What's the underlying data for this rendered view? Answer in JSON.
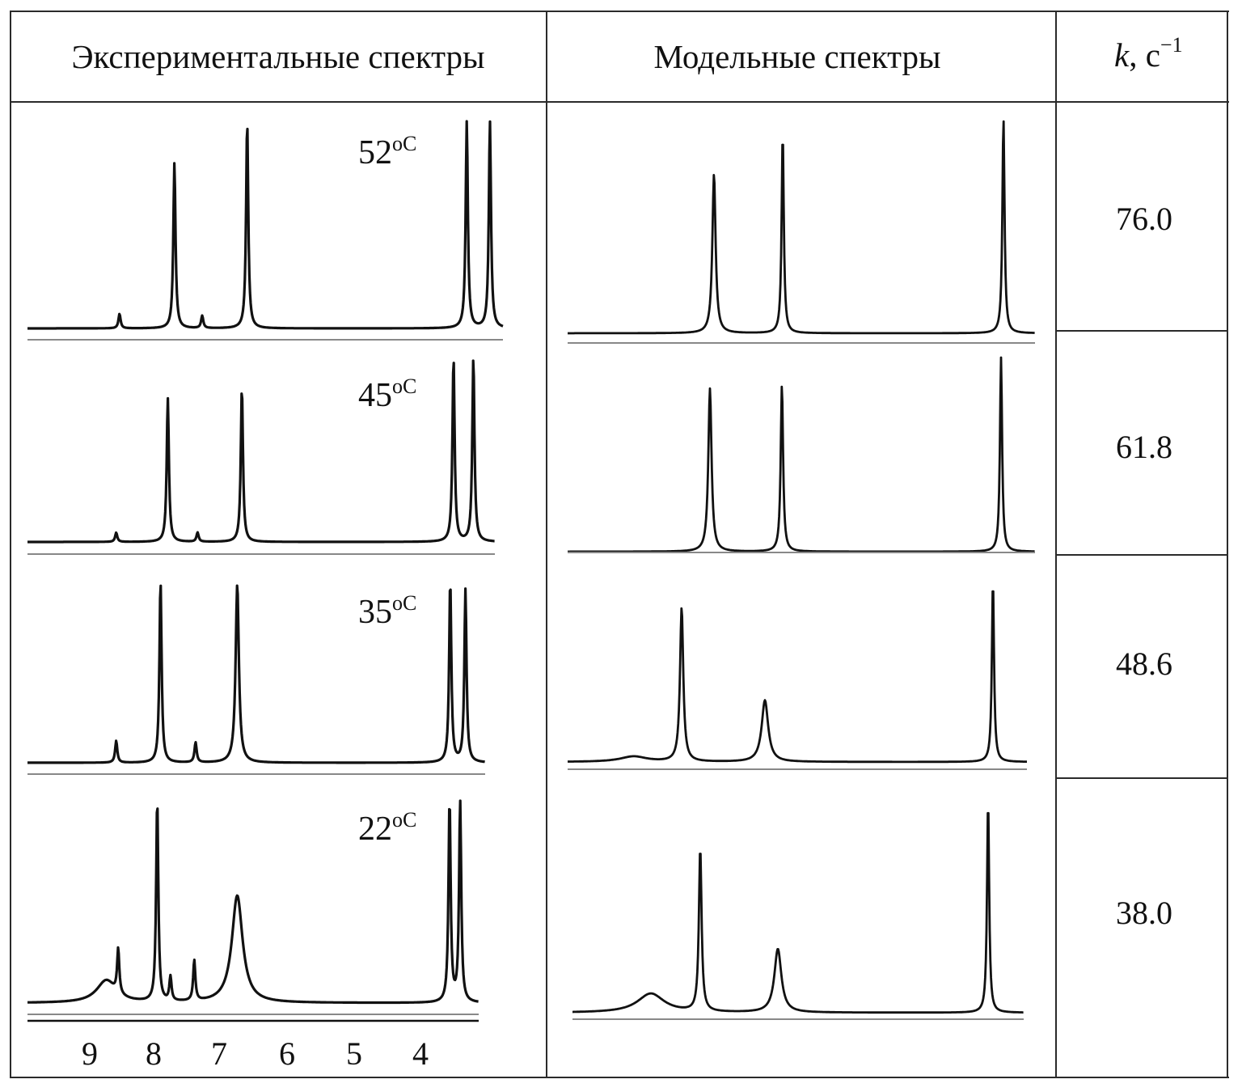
{
  "headers": {
    "experimental": "Экспериментальные спектры",
    "model": "Модельные спектры",
    "k_symbol": "k",
    "k_unit": ", с",
    "k_exp": "−1"
  },
  "rows": [
    {
      "temperature": "52",
      "temp_unit": "oC",
      "k_value": "76.0",
      "exp_peaks": [
        {
          "ppm": 8.55,
          "h": 0.07,
          "w": 0.008
        },
        {
          "ppm": 7.72,
          "h": 0.8,
          "w": 0.012
        },
        {
          "ppm": 7.3,
          "h": 0.06,
          "w": 0.008
        },
        {
          "ppm": 6.62,
          "h": 1.0,
          "w": 0.01
        },
        {
          "ppm": 3.3,
          "h": 1.0,
          "w": 0.007
        },
        {
          "ppm": 2.95,
          "h": 1.0,
          "w": 0.007
        }
      ],
      "model_peaks": [
        {
          "ppm": 7.72,
          "h": 0.74,
          "w": 0.03
        },
        {
          "ppm": 6.62,
          "h": 0.93,
          "w": 0.018
        },
        {
          "ppm": 3.3,
          "h": 1.0,
          "w": 0.01
        }
      ]
    },
    {
      "temperature": "45",
      "temp_unit": "oC",
      "k_value": "61.8",
      "exp_peaks": [
        {
          "ppm": 8.6,
          "h": 0.05,
          "w": 0.008
        },
        {
          "ppm": 7.82,
          "h": 0.78,
          "w": 0.012
        },
        {
          "ppm": 7.37,
          "h": 0.05,
          "w": 0.008
        },
        {
          "ppm": 6.7,
          "h": 0.84,
          "w": 0.02
        },
        {
          "ppm": 3.5,
          "h": 1.0,
          "w": 0.007
        },
        {
          "ppm": 3.2,
          "h": 1.0,
          "w": 0.007
        }
      ],
      "model_peaks": [
        {
          "ppm": 7.82,
          "h": 0.84,
          "w": 0.03
        },
        {
          "ppm": 6.7,
          "h": 0.86,
          "w": 0.022
        },
        {
          "ppm": 3.5,
          "h": 1.0,
          "w": 0.01
        }
      ]
    },
    {
      "temperature": "35",
      "temp_unit": "oC",
      "k_value": "48.6",
      "exp_peaks": [
        {
          "ppm": 8.6,
          "h": 0.12,
          "w": 0.008
        },
        {
          "ppm": 7.93,
          "h": 1.0,
          "w": 0.012
        },
        {
          "ppm": 7.4,
          "h": 0.11,
          "w": 0.008
        },
        {
          "ppm": 6.77,
          "h": 0.98,
          "w": 0.03
        },
        {
          "ppm": 3.55,
          "h": 1.0,
          "w": 0.008
        },
        {
          "ppm": 3.32,
          "h": 0.95,
          "w": 0.008
        }
      ],
      "model_peaks": [
        {
          "ppm": 8.6,
          "h": 0.03,
          "w": 0.25
        },
        {
          "ppm": 7.93,
          "h": 0.85,
          "w": 0.03
        },
        {
          "ppm": 6.77,
          "h": 0.34,
          "w": 0.06
        },
        {
          "ppm": 3.55,
          "h": 1.0,
          "w": 0.01
        }
      ]
    },
    {
      "temperature": "22",
      "temp_unit": "oC",
      "k_value": "38.0",
      "exp_peaks": [
        {
          "ppm": 8.75,
          "h": 0.11,
          "w": 0.18
        },
        {
          "ppm": 8.57,
          "h": 0.22,
          "w": 0.008
        },
        {
          "ppm": 7.98,
          "h": 1.0,
          "w": 0.01
        },
        {
          "ppm": 7.78,
          "h": 0.12,
          "w": 0.008
        },
        {
          "ppm": 7.42,
          "h": 0.2,
          "w": 0.008
        },
        {
          "ppm": 6.77,
          "h": 0.53,
          "w": 0.1
        },
        {
          "ppm": 3.56,
          "h": 1.0,
          "w": 0.008
        },
        {
          "ppm": 3.4,
          "h": 1.0,
          "w": 0.008
        }
      ],
      "model_peaks": [
        {
          "ppm": 8.75,
          "h": 0.09,
          "w": 0.25
        },
        {
          "ppm": 7.98,
          "h": 0.77,
          "w": 0.025
        },
        {
          "ppm": 6.77,
          "h": 0.3,
          "w": 0.065
        },
        {
          "ppm": 3.56,
          "h": 1.0,
          "w": 0.01
        }
      ]
    }
  ],
  "axis": {
    "label": "",
    "ticks": [
      "9",
      "8",
      "7",
      "6",
      "5",
      "4"
    ]
  }
}
